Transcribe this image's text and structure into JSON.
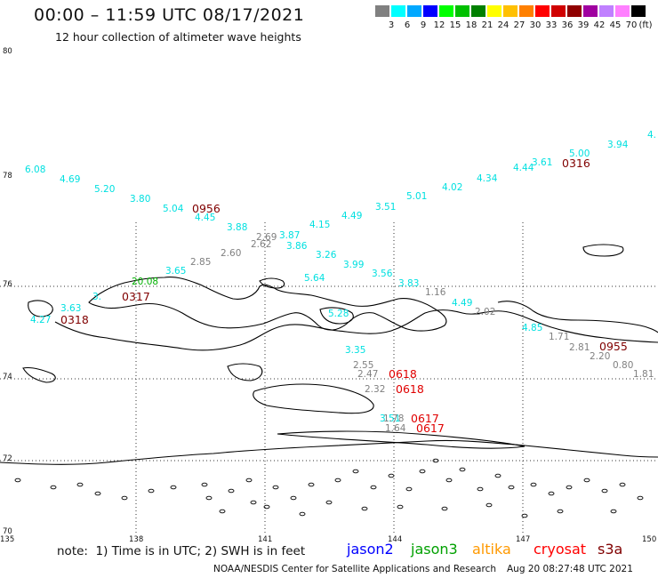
{
  "header": {
    "title": "00:00 – 11:59 UTC 08/17/2021",
    "subtitle": "12 hour collection of altimeter wave heights"
  },
  "colorbar": {
    "unit": "(ft)",
    "colors": [
      "#808080",
      "#00ffff",
      "#00a8ff",
      "#0000ff",
      "#00ff00",
      "#00c000",
      "#008000",
      "#ffff00",
      "#ffc000",
      "#ff8000",
      "#ff0000",
      "#d00000",
      "#900000",
      "#a000a0",
      "#c080ff",
      "#ff80ff",
      "#000000"
    ],
    "labels": [
      "3",
      "6",
      "9",
      "12",
      "15",
      "18",
      "21",
      "24",
      "27",
      "30",
      "33",
      "36",
      "39",
      "42",
      "45",
      "70"
    ]
  },
  "axes": {
    "lat_labels": [
      "80",
      "78",
      "76",
      "74",
      "72",
      "70"
    ],
    "lon_labels": [
      "135",
      "138",
      "141",
      "144",
      "147",
      "150"
    ]
  },
  "wave_heights": [
    {
      "t": "6.08",
      "c": "#00e0e0"
    },
    {
      "t": "4.69",
      "c": "#00e0e0"
    },
    {
      "t": "5.20",
      "c": "#00e0e0"
    },
    {
      "t": "3.80",
      "c": "#00e0e0"
    },
    {
      "t": "5.04",
      "c": "#00e0e0"
    },
    {
      "t": "4.45",
      "c": "#00e0e0"
    },
    {
      "t": "3.88",
      "c": "#00e0e0"
    },
    {
      "t": "3.87",
      "c": "#00e0e0"
    },
    {
      "t": "3.86",
      "c": "#00e0e0"
    },
    {
      "t": "4.15",
      "c": "#00e0e0"
    },
    {
      "t": "4.49",
      "c": "#00e0e0"
    },
    {
      "t": "3.51",
      "c": "#00e0e0"
    },
    {
      "t": "5.01",
      "c": "#00e0e0"
    },
    {
      "t": "4.02",
      "c": "#00e0e0"
    },
    {
      "t": "4.34",
      "c": "#00e0e0"
    },
    {
      "t": "4.44",
      "c": "#00e0e0"
    },
    {
      "t": "3.61",
      "c": "#00e0e0"
    },
    {
      "t": "5.00",
      "c": "#00e0e0"
    },
    {
      "t": "3.94",
      "c": "#00e0e0"
    },
    {
      "t": "4.",
      "c": "#00e0e0"
    },
    {
      "t": "3.26",
      "c": "#00e0e0"
    },
    {
      "t": "3.99",
      "c": "#00e0e0"
    },
    {
      "t": "3.56",
      "c": "#00e0e0"
    },
    {
      "t": "3.83",
      "c": "#00e0e0"
    },
    {
      "t": "5.64",
      "c": "#00e0e0"
    },
    {
      "t": "3.65",
      "c": "#00e0e0"
    },
    {
      "t": "4.49",
      "c": "#00e0e0"
    },
    {
      "t": "5.28",
      "c": "#00e0e0"
    },
    {
      "t": "4.85",
      "c": "#00e0e0"
    },
    {
      "t": "3.35",
      "c": "#00e0e0"
    },
    {
      "t": "3.63",
      "c": "#00e0e0"
    },
    {
      "t": "4.27",
      "c": "#00e0e0"
    },
    {
      "t": "3.",
      "c": "#00e0e0"
    },
    {
      "t": "3.51",
      "c": "#00e0e0"
    },
    {
      "t": "2.69",
      "c": "#808080"
    },
    {
      "t": "2.62",
      "c": "#808080"
    },
    {
      "t": "2.60",
      "c": "#808080"
    },
    {
      "t": "2.85",
      "c": "#808080"
    },
    {
      "t": "1.16",
      "c": "#808080"
    },
    {
      "t": "2.02",
      "c": "#808080"
    },
    {
      "t": "1.71",
      "c": "#808080"
    },
    {
      "t": "2.81",
      "c": "#808080"
    },
    {
      "t": "2.20",
      "c": "#808080"
    },
    {
      "t": "0.80",
      "c": "#808080"
    },
    {
      "t": "1.81",
      "c": "#808080"
    },
    {
      "t": "2.55",
      "c": "#808080"
    },
    {
      "t": "2.47",
      "c": "#808080"
    },
    {
      "t": "2.32",
      "c": "#808080"
    },
    {
      "t": "1.64",
      "c": "#808080"
    },
    {
      "t": "1.78",
      "c": "#808080"
    },
    {
      "t": "20.08",
      "c": "#00b000"
    }
  ],
  "time_labels": [
    {
      "t": "0956",
      "c": "#800000"
    },
    {
      "t": "0316",
      "c": "#800000"
    },
    {
      "t": "0317",
      "c": "#800000"
    },
    {
      "t": "0318",
      "c": "#800000"
    },
    {
      "t": "0955",
      "c": "#800000"
    },
    {
      "t": "0618",
      "c": "#e00000"
    },
    {
      "t": "0618",
      "c": "#e00000"
    },
    {
      "t": "0617",
      "c": "#e00000"
    },
    {
      "t": "0617",
      "c": "#e00000"
    }
  ],
  "footer": {
    "note": "note:  1) Time is in UTC; 2) SWH is in feet",
    "missions": [
      {
        "name": "jason2",
        "color": "#0000ff"
      },
      {
        "name": "jason3",
        "color": "#00a000"
      },
      {
        "name": "altika",
        "color": "#ff9900"
      },
      {
        "name": "cryosat",
        "color": "#ff0000"
      },
      {
        "name": "s3a",
        "color": "#800000"
      }
    ],
    "credit": "NOAA/NESDIS Center for Satellite Applications and Research",
    "timestamp": "Aug 20 08:27:48 UTC 2021"
  }
}
